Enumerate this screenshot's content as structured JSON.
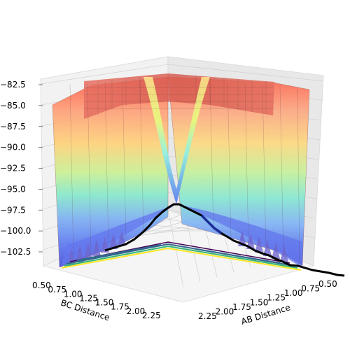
{
  "chart_data": {
    "type": "surface3d",
    "title": "",
    "xlabel": "AB Distance",
    "ylabel": "BC Distance",
    "zlabel": "",
    "x_ticks": [
      "0.50",
      "0.75",
      "1.00",
      "1.25",
      "1.50",
      "1.75",
      "2.00",
      "2.25"
    ],
    "y_ticks": [
      "0.50",
      "0.75",
      "1.00",
      "1.25",
      "1.50",
      "1.75",
      "2.00",
      "2.25"
    ],
    "z_ticks": [
      "−102.5",
      "−100.0",
      "−97.5",
      "−95.0",
      "−92.5",
      "−90.0",
      "−87.5",
      "−85.0",
      "−82.5"
    ],
    "xlim": [
      0.5,
      2.4
    ],
    "ylim": [
      0.5,
      2.4
    ],
    "zlim": [
      -104,
      -82
    ],
    "colormap": "jet",
    "surface_alpha": 0.45,
    "contour_colors": [
      "#440154",
      "#31688e",
      "#35b779",
      "#fde725"
    ],
    "trajectory": {
      "color": "#000000",
      "points_bc_ab_energy": [
        [
          2.3,
          0.74,
          -103.5
        ],
        [
          2.0,
          0.74,
          -103.2
        ],
        [
          1.7,
          0.76,
          -102.5
        ],
        [
          1.4,
          0.8,
          -101.2
        ],
        [
          1.1,
          0.86,
          -98.5
        ],
        [
          0.95,
          0.95,
          -97.8
        ],
        [
          0.86,
          1.1,
          -98.5
        ],
        [
          0.8,
          1.4,
          -101.0
        ],
        [
          0.76,
          1.7,
          -102.4
        ],
        [
          0.74,
          2.0,
          -103.2
        ],
        [
          0.74,
          2.3,
          -103.6
        ]
      ]
    },
    "grid": true,
    "legend": "none"
  }
}
